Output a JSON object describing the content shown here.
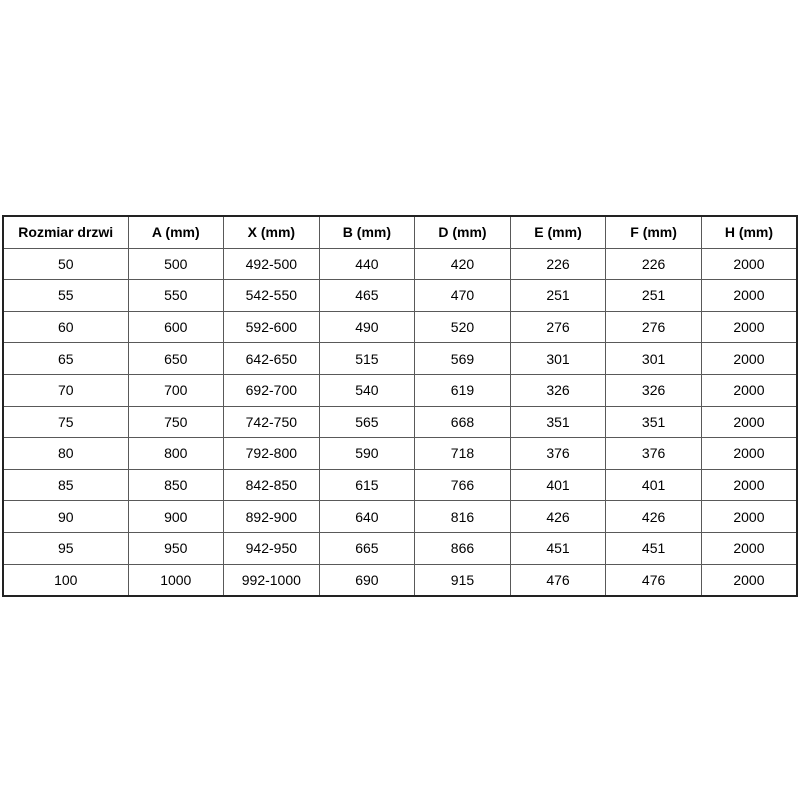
{
  "colors": {
    "background": "#ffffff",
    "text": "#000000",
    "grid_border": "#595959",
    "outer_border": "#222222"
  },
  "table": {
    "columns": [
      "Rozmiar drzwi",
      "A (mm)",
      "X (mm)",
      "B (mm)",
      "D (mm)",
      "E (mm)",
      "F (mm)",
      "H (mm)"
    ],
    "rows": [
      [
        "50",
        "500",
        "492-500",
        "440",
        "420",
        "226",
        "226",
        "2000"
      ],
      [
        "55",
        "550",
        "542-550",
        "465",
        "470",
        "251",
        "251",
        "2000"
      ],
      [
        "60",
        "600",
        "592-600",
        "490",
        "520",
        "276",
        "276",
        "2000"
      ],
      [
        "65",
        "650",
        "642-650",
        "515",
        "569",
        "301",
        "301",
        "2000"
      ],
      [
        "70",
        "700",
        "692-700",
        "540",
        "619",
        "326",
        "326",
        "2000"
      ],
      [
        "75",
        "750",
        "742-750",
        "565",
        "668",
        "351",
        "351",
        "2000"
      ],
      [
        "80",
        "800",
        "792-800",
        "590",
        "718",
        "376",
        "376",
        "2000"
      ],
      [
        "85",
        "850",
        "842-850",
        "615",
        "766",
        "401",
        "401",
        "2000"
      ],
      [
        "90",
        "900",
        "892-900",
        "640",
        "816",
        "426",
        "426",
        "2000"
      ],
      [
        "95",
        "950",
        "942-950",
        "665",
        "866",
        "451",
        "451",
        "2000"
      ],
      [
        "100",
        "1000",
        "992-1000",
        "690",
        "915",
        "476",
        "476",
        "2000"
      ]
    ]
  }
}
